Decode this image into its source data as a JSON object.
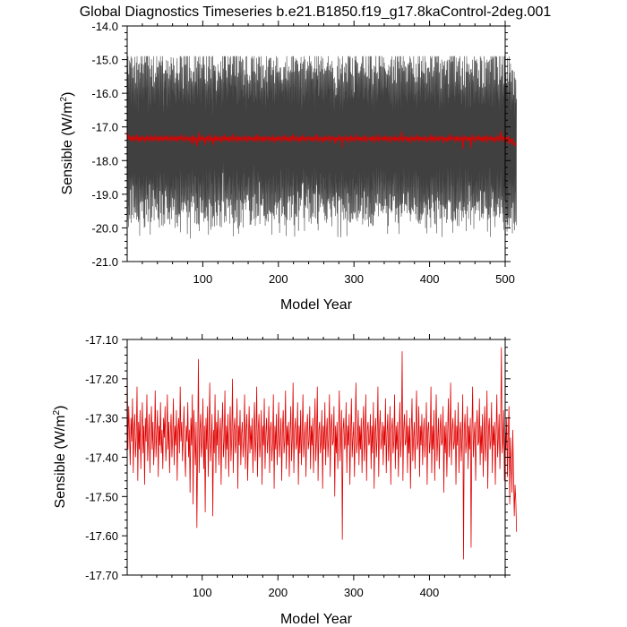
{
  "figure": {
    "title": "Global Diagnostics Timeseries b.e21.B1850.f19_g17.8kaControl-2deg.001"
  },
  "colors": {
    "monthly": "#000000",
    "annual": "#e00000",
    "axis": "#000000",
    "background": "#ffffff"
  },
  "chart_data": [
    {
      "type": "line",
      "name": "monthly-and-annual-sensible",
      "xlabel": "Model Year",
      "ylabel_main": "Sensible (W/m",
      "ylabel_sup": "2",
      "ylabel_close": ")",
      "xlim": [
        0,
        500
      ],
      "ylim": [
        -21.0,
        -14.0
      ],
      "xticks": [
        100,
        200,
        300,
        400,
        500
      ],
      "xtick_labels": [
        "100",
        "200",
        "300",
        "400",
        "500"
      ],
      "yticks": [
        -14.0,
        -15.0,
        -16.0,
        -17.0,
        -18.0,
        -19.0,
        -20.0,
        -21.0
      ],
      "ytick_labels": [
        "-14.0",
        "-15.0",
        "-16.0",
        "-17.0",
        "-18.0",
        "-19.0",
        "-20.0",
        "-21.0"
      ],
      "series": [
        {
          "name": "monthly",
          "color": "#000000",
          "samples_per_year": 12,
          "mean": -17.35,
          "seasonal_amplitude": 2.0,
          "noise_amplitude": 0.45,
          "envelope_max": -14.9,
          "envelope_min": -20.6
        },
        {
          "name": "annual-mean",
          "color": "#e00000",
          "ref": "annual"
        }
      ]
    },
    {
      "type": "line",
      "name": "annual-sensible",
      "xlabel": "Model Year",
      "ylabel_main": "Sensible (W/m",
      "ylabel_sup": "2",
      "ylabel_close": ")",
      "xlim": [
        1,
        500
      ],
      "ylim": [
        -17.7,
        -17.1
      ],
      "xticks": [
        100,
        200,
        300,
        400
      ],
      "xtick_labels": [
        "100",
        "200",
        "300",
        "400"
      ],
      "yticks": [
        -17.1,
        -17.2,
        -17.3,
        -17.4,
        -17.5,
        -17.6,
        -17.7
      ],
      "ytick_labels": [
        "-17.10",
        "-17.20",
        "-17.30",
        "-17.40",
        "-17.50",
        "-17.60",
        "-17.70"
      ],
      "series": [
        {
          "name": "annual",
          "color": "#e00000",
          "x_start": 1,
          "values": [
            -17.16,
            -17.38,
            -17.27,
            -17.34,
            -17.42,
            -17.3,
            -17.36,
            -17.25,
            -17.44,
            -17.33,
            -17.29,
            -17.4,
            -17.35,
            -17.22,
            -17.46,
            -17.31,
            -17.38,
            -17.28,
            -17.43,
            -17.34,
            -17.26,
            -17.39,
            -17.32,
            -17.47,
            -17.3,
            -17.36,
            -17.24,
            -17.41,
            -17.35,
            -17.29,
            -17.44,
            -17.33,
            -17.27,
            -17.38,
            -17.31,
            -17.42,
            -17.36,
            -17.23,
            -17.4,
            -17.34,
            -17.28,
            -17.45,
            -17.32,
            -17.37,
            -17.26,
            -17.39,
            -17.33,
            -17.43,
            -17.3,
            -17.35,
            -17.27,
            -17.41,
            -17.36,
            -17.24,
            -17.38,
            -17.31,
            -17.44,
            -17.34,
            -17.29,
            -17.4,
            -17.35,
            -17.25,
            -17.42,
            -17.32,
            -17.37,
            -17.28,
            -17.46,
            -17.33,
            -17.3,
            -17.39,
            -17.22,
            -17.36,
            -17.31,
            -17.41,
            -17.34,
            -17.27,
            -17.38,
            -17.45,
            -17.32,
            -17.36,
            -17.26,
            -17.4,
            -17.33,
            -17.49,
            -17.3,
            -17.37,
            -17.24,
            -17.52,
            -17.28,
            -17.35,
            -17.42,
            -17.31,
            -17.58,
            -17.38,
            -17.15,
            -17.44,
            -17.33,
            -17.29,
            -17.4,
            -17.36,
            -17.25,
            -17.43,
            -17.32,
            -17.54,
            -17.3,
            -17.38,
            -17.27,
            -17.45,
            -17.34,
            -17.21,
            -17.41,
            -17.36,
            -17.29,
            -17.55,
            -17.33,
            -17.39,
            -17.24,
            -17.44,
            -17.31,
            -17.37,
            -17.28,
            -17.42,
            -17.35,
            -17.3,
            -17.47,
            -17.33,
            -17.26,
            -17.4,
            -17.36,
            -17.23,
            -17.43,
            -17.32,
            -17.38,
            -17.29,
            -17.45,
            -17.34,
            -17.27,
            -17.41,
            -17.35,
            -17.2,
            -17.44,
            -17.33,
            -17.3,
            -17.39,
            -17.36,
            -17.25,
            -17.48,
            -17.32,
            -17.37,
            -17.28,
            -17.42,
            -17.34,
            -17.31,
            -17.4,
            -17.35,
            -17.24,
            -17.43,
            -17.33,
            -17.29,
            -17.46,
            -17.36,
            -17.27,
            -17.39,
            -17.32,
            -17.38,
            -17.3,
            -17.44,
            -17.34,
            -17.26,
            -17.41,
            -17.35,
            -17.22,
            -17.45,
            -17.33,
            -17.29,
            -17.4,
            -17.36,
            -17.28,
            -17.47,
            -17.32,
            -17.37,
            -17.25,
            -17.43,
            -17.34,
            -17.3,
            -17.39,
            -17.35,
            -17.27,
            -17.44,
            -17.33,
            -17.31,
            -17.41,
            -17.36,
            -17.24,
            -17.48,
            -17.32,
            -17.38,
            -17.29,
            -17.42,
            -17.34,
            -17.26,
            -17.4,
            -17.35,
            -17.3,
            -17.46,
            -17.33,
            -17.28,
            -17.39,
            -17.36,
            -17.23,
            -17.43,
            -17.32,
            -17.37,
            -17.31,
            -17.45,
            -17.34,
            -17.27,
            -17.41,
            -17.35,
            -17.21,
            -17.44,
            -17.33,
            -17.3,
            -17.38,
            -17.36,
            -17.26,
            -17.47,
            -17.32,
            -17.39,
            -17.28,
            -17.42,
            -17.34,
            -17.24,
            -17.4,
            -17.35,
            -17.31,
            -17.45,
            -17.33,
            -17.29,
            -17.38,
            -17.36,
            -17.27,
            -17.43,
            -17.32,
            -17.37,
            -17.3,
            -17.44,
            -17.34,
            -17.25,
            -17.41,
            -17.35,
            -17.22,
            -17.46,
            -17.33,
            -17.31,
            -17.39,
            -17.36,
            -17.28,
            -17.48,
            -17.32,
            -17.38,
            -17.26,
            -17.42,
            -17.34,
            -17.3,
            -17.4,
            -17.35,
            -17.24,
            -17.45,
            -17.33,
            -17.29,
            -17.37,
            -17.36,
            -17.27,
            -17.5,
            -17.32,
            -17.39,
            -17.31,
            -17.43,
            -17.34,
            -17.23,
            -17.41,
            -17.35,
            -17.28,
            -17.61,
            -17.33,
            -17.3,
            -17.38,
            -17.36,
            -17.26,
            -17.44,
            -17.32,
            -17.37,
            -17.29,
            -17.47,
            -17.34,
            -17.25,
            -17.4,
            -17.35,
            -17.31,
            -17.45,
            -17.33,
            -17.21,
            -17.39,
            -17.36,
            -17.28,
            -17.42,
            -17.32,
            -17.38,
            -17.3,
            -17.44,
            -17.34,
            -17.27,
            -17.41,
            -17.35,
            -17.24,
            -17.46,
            -17.33,
            -17.31,
            -17.37,
            -17.36,
            -17.29,
            -17.43,
            -17.32,
            -17.39,
            -17.26,
            -17.48,
            -17.34,
            -17.3,
            -17.4,
            -17.35,
            -17.22,
            -17.45,
            -17.33,
            -17.28,
            -17.38,
            -17.36,
            -17.31,
            -17.42,
            -17.32,
            -17.37,
            -17.25,
            -17.44,
            -17.34,
            -17.29,
            -17.41,
            -17.35,
            -17.27,
            -17.47,
            -17.33,
            -17.3,
            -17.39,
            -17.36,
            -17.24,
            -17.43,
            -17.32,
            -17.38,
            -17.31,
            -17.45,
            -17.34,
            -17.26,
            -17.4,
            -17.35,
            -17.13,
            -17.46,
            -17.33,
            -17.29,
            -17.37,
            -17.36,
            -17.28,
            -17.44,
            -17.32,
            -17.39,
            -17.3,
            -17.48,
            -17.34,
            -17.25,
            -17.41,
            -17.35,
            -17.31,
            -17.43,
            -17.33,
            -17.23,
            -17.38,
            -17.36,
            -17.27,
            -17.45,
            -17.32,
            -17.37,
            -17.29,
            -17.42,
            -17.34,
            -17.3,
            -17.4,
            -17.35,
            -17.26,
            -17.47,
            -17.33,
            -17.31,
            -17.39,
            -17.36,
            -17.22,
            -17.44,
            -17.32,
            -17.38,
            -17.28,
            -17.46,
            -17.34,
            -17.24,
            -17.41,
            -17.35,
            -17.3,
            -17.43,
            -17.33,
            -17.29,
            -17.37,
            -17.36,
            -17.27,
            -17.49,
            -17.32,
            -17.39,
            -17.31,
            -17.45,
            -17.34,
            -17.25,
            -17.4,
            -17.35,
            -17.21,
            -17.42,
            -17.33,
            -17.3,
            -17.38,
            -17.36,
            -17.28,
            -17.47,
            -17.32,
            -17.37,
            -17.26,
            -17.44,
            -17.34,
            -17.31,
            -17.41,
            -17.35,
            -17.24,
            -17.66,
            -17.33,
            -17.29,
            -17.39,
            -17.36,
            -17.27,
            -17.43,
            -17.32,
            -17.38,
            -17.3,
            -17.63,
            -17.34,
            -17.22,
            -17.4,
            -17.35,
            -17.31,
            -17.46,
            -17.33,
            -17.28,
            -17.37,
            -17.36,
            -17.25,
            -17.42,
            -17.32,
            -17.39,
            -17.29,
            -17.45,
            -17.34,
            -17.27,
            -17.41,
            -17.35,
            -17.23,
            -17.48,
            -17.33,
            -17.3,
            -17.38,
            -17.36,
            -17.26,
            -17.44,
            -17.32,
            -17.37,
            -17.31,
            -17.47,
            -17.34,
            -17.24,
            -17.4,
            -17.35,
            -17.29,
            -17.43,
            -17.33,
            -17.12,
            -17.39,
            -17.36,
            -17.28,
            -17.46,
            -17.32,
            -17.38,
            -17.3,
            -17.45,
            -17.34,
            -17.27,
            -17.52,
            -17.35,
            -17.41,
            -17.49,
            -17.33,
            -17.44,
            -17.55,
            -17.47,
            -17.51,
            -17.59
          ]
        }
      ]
    }
  ]
}
